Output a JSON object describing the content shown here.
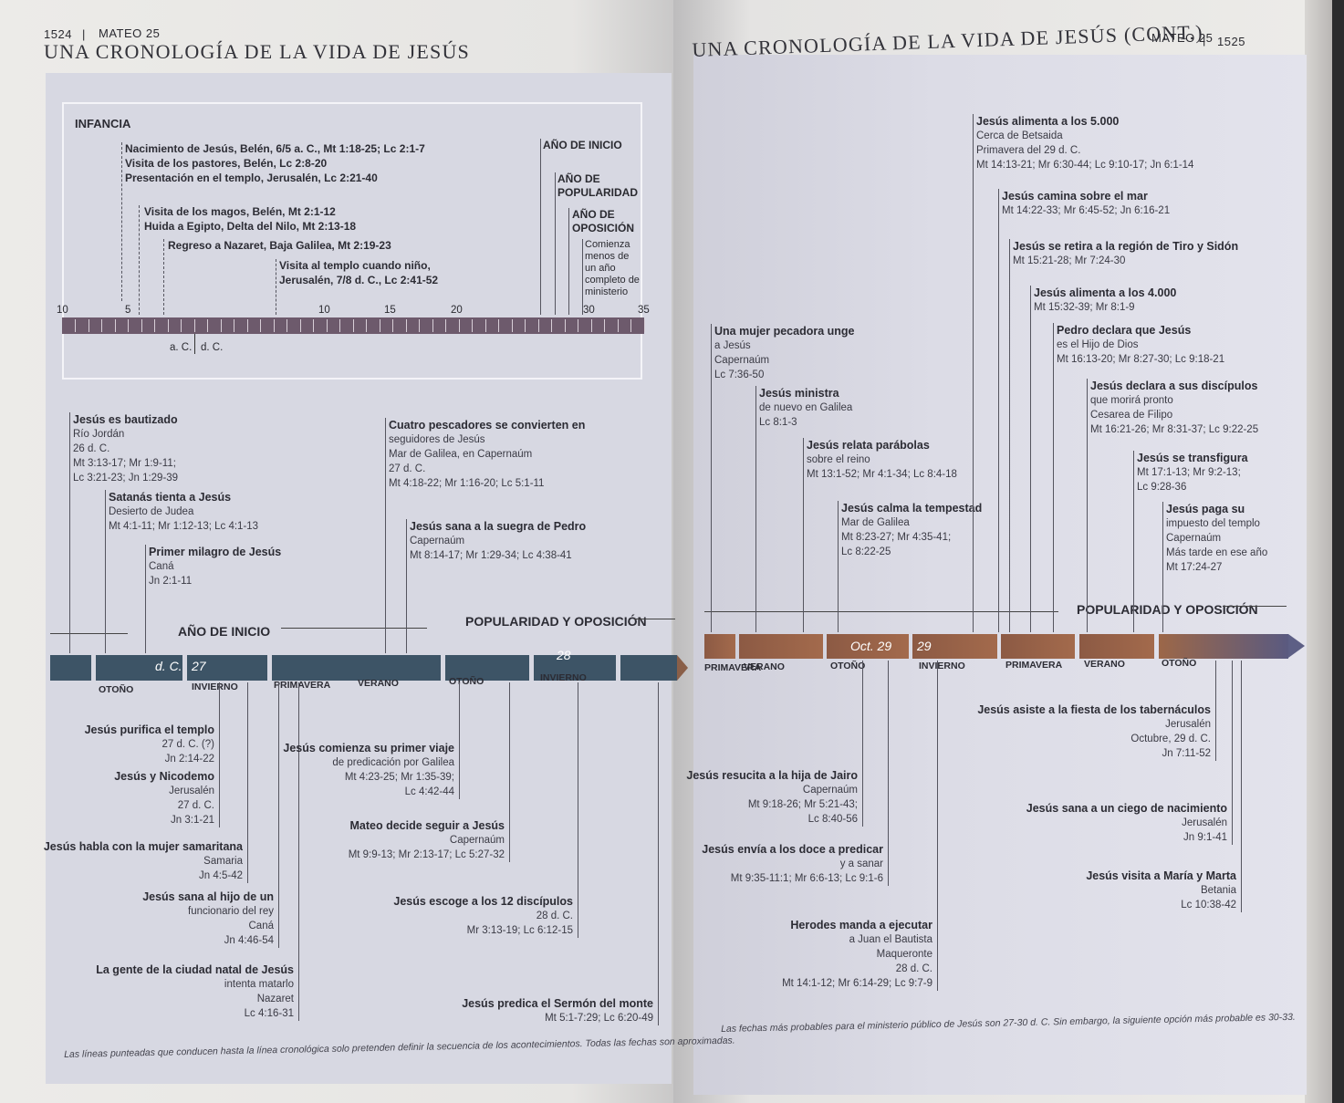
{
  "left_page": {
    "page_number": "1524",
    "running_head": "MATEO 25",
    "title": "UNA CRONOLOGÍA DE LA VIDA DE JESÚS",
    "infancy": {
      "heading": "INFANCIA",
      "events": [
        "Nacimiento de Jesús, Belén, 6/5 a. C., Mt 1:18-25; Lc 2:1-7",
        "Visita de los pastores, Belén, Lc 2:8-20",
        "Presentación en el templo, Jerusalén, Lc 2:21-40",
        "Visita de los magos, Belén, Mt 2:1-12",
        "Huida a Egipto, Delta del Nilo, Mt 2:13-18",
        "Regreso a Nazaret, Baja Galilea, Mt 2:19-23",
        "Visita al templo cuando niño,",
        "Jerusalén, 7/8 d. C., Lc 2:41-52"
      ],
      "phase_labels": [
        "AÑO DE INICIO",
        "AÑO DE POPULARIDAD",
        "AÑO DE OPOSICIÓN"
      ],
      "note": "Comienza menos de un año completo de ministerio",
      "scale": [
        "10",
        "5",
        "10",
        "15",
        "20",
        "30",
        "35"
      ],
      "era_labels": [
        "a. C.",
        "d. C."
      ]
    },
    "timeline": {
      "periods": [
        "AÑO DE INICIO",
        "POPULARIDAD Y OPOSICIÓN"
      ],
      "years": [
        "d. C.",
        "27",
        "28"
      ],
      "seasons": [
        "OTOÑO",
        "INVIERNO",
        "PRIMAVERA",
        "VERANO",
        "OTOÑO",
        "INVIERNO"
      ]
    },
    "events_above": [
      [
        "Jesús es bautizado",
        "Río Jordán",
        "26 d. C.",
        "Mt 3:13-17; Mr 1:9-11;",
        "Lc 3:21-23; Jn 1:29-39"
      ],
      [
        "Satanás tienta a Jesús",
        "Desierto de Judea",
        "Mt 4:1-11; Mr 1:12-13; Lc 4:1-13"
      ],
      [
        "Primer milagro de Jesús",
        "Caná",
        "Jn 2:1-11"
      ],
      [
        "Cuatro pescadores se convierten en",
        "seguidores de Jesús",
        "Mar de Galilea, en Capernaúm",
        "27 d. C.",
        "Mt 4:18-22; Mr 1:16-20; Lc 5:1-11"
      ],
      [
        "Jesús sana a la suegra de Pedro",
        "Capernaúm",
        "Mt 8:14-17; Mr 1:29-34; Lc 4:38-41"
      ]
    ],
    "events_below": [
      [
        "Jesús purifica el templo",
        "27 d. C. (?)",
        "Jn 2:14-22"
      ],
      [
        "Jesús y Nicodemo",
        "Jerusalén",
        "27 d. C.",
        "Jn 3:1-21"
      ],
      [
        "Jesús habla con la mujer samaritana",
        "Samaria",
        "Jn 4:5-42"
      ],
      [
        "Jesús sana al hijo de un",
        "funcionario del rey",
        "Caná",
        "Jn 4:46-54"
      ],
      [
        "La gente de la ciudad natal de Jesús",
        "intenta matarlo",
        "Nazaret",
        "Lc 4:16-31"
      ],
      [
        "Jesús comienza su primer viaje",
        "de predicación por Galilea",
        "Mt 4:23-25; Mr 1:35-39;",
        "Lc 4:42-44"
      ],
      [
        "Mateo decide seguir a Jesús",
        "Capernaúm",
        "Mt 9:9-13; Mr 2:13-17; Lc 5:27-32"
      ],
      [
        "Jesús escoge a los 12 discípulos",
        "28 d. C.",
        "Mr 3:13-19; Lc 6:12-15"
      ],
      [
        "Jesús predica el Sermón del monte",
        "Mt 5:1-7:29; Lc 6:20-49"
      ]
    ],
    "footnote": "Las líneas punteadas que conducen hasta la línea cronológica solo pretenden definir la secuencia de los acontecimientos. Todas las fechas son aproximadas."
  },
  "right_page": {
    "page_number": "1525",
    "running_head": "MATEO 25",
    "title": "UNA CRONOLOGÍA DE LA VIDA DE JESÚS (CONT.)",
    "timeline": {
      "periods": [
        "POPULARIDAD Y OPOSICIÓN"
      ],
      "years": [
        "Oct. 29",
        "29"
      ],
      "seasons": [
        "PRIMAVERA",
        "VERANO",
        "OTOÑO",
        "INVIERNO",
        "PRIMAVERA",
        "VERANO",
        "OTOÑO"
      ]
    },
    "events_above": [
      [
        "Una mujer pecadora unge",
        "a Jesús",
        "Capernaúm",
        "Lc 7:36-50"
      ],
      [
        "Jesús ministra",
        "de nuevo en Galilea",
        "Lc 8:1-3"
      ],
      [
        "Jesús relata parábolas",
        "sobre el reino",
        "Mt 13:1-52; Mr 4:1-34; Lc 8:4-18"
      ],
      [
        "Jesús calma la tempestad",
        "Mar de Galilea",
        "Mt 8:23-27; Mr 4:35-41;",
        "Lc 8:22-25"
      ],
      [
        "Jesús alimenta a los 5.000",
        "Cerca de Betsaida",
        "Primavera del 29 d. C.",
        "Mt 14:13-21; Mr 6:30-44; Lc 9:10-17; Jn 6:1-14"
      ],
      [
        "Jesús camina sobre el mar",
        "Mt 14:22-33; Mr 6:45-52; Jn 6:16-21"
      ],
      [
        "Jesús se retira a la región de Tiro y Sidón",
        "Mt 15:21-28; Mr 7:24-30"
      ],
      [
        "Jesús alimenta a los 4.000",
        "Mt 15:32-39; Mr 8:1-9"
      ],
      [
        "Pedro declara que Jesús",
        "es el Hijo de Dios",
        "Mt 16:13-20; Mr 8:27-30; Lc 9:18-21"
      ],
      [
        "Jesús declara a sus discípulos",
        "que morirá pronto",
        "Cesarea de Filipo",
        "Mt 16:21-26; Mr 8:31-37; Lc 9:22-25"
      ],
      [
        "Jesús se transfigura",
        "Mt 17:1-13; Mr 9:2-13;",
        "Lc 9:28-36"
      ],
      [
        "Jesús paga su",
        "impuesto del templo",
        "Capernaúm",
        "Más tarde en ese año",
        "Mt 17:24-27"
      ]
    ],
    "events_below": [
      [
        "Jesús resucita a la hija de Jairo",
        "Capernaúm",
        "Mt 9:18-26; Mr 5:21-43;",
        "Lc 8:40-56"
      ],
      [
        "Jesús envía a los doce a predicar",
        "y a sanar",
        "Mt 9:35-11:1; Mr 6:6-13; Lc 9:1-6"
      ],
      [
        "Herodes manda a ejecutar",
        "a Juan el Bautista",
        "Maqueronte",
        "28 d. C.",
        "Mt 14:1-12; Mr 6:14-29; Lc 9:7-9"
      ],
      [
        "Jesús asiste a la fiesta de los tabernáculos",
        "Jerusalén",
        "Octubre, 29 d. C.",
        "Jn 7:11-52"
      ],
      [
        "Jesús sana a un ciego de nacimiento",
        "Jerusalén",
        "Jn 9:1-41"
      ],
      [
        "Jesús visita a María y Marta",
        "Betania",
        "Lc 10:38-42"
      ]
    ],
    "footnote": "Las fechas más probables para el ministerio público de Jesús son 27-30 d. C. Sin embargo, la siguiente opción más probable es 30-33."
  }
}
